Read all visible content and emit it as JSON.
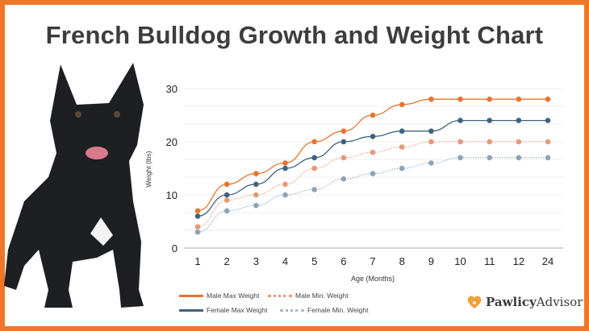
{
  "title": "French Bulldog Growth and Weight Chart",
  "brand": {
    "part1": "Pawlicy",
    "part2": "Advisor"
  },
  "colors": {
    "border": "#ee7628",
    "male_max": "#e8732f",
    "male_min": "#e39a77",
    "female_max": "#3f6280",
    "female_min": "#8da3b7"
  },
  "chart_data": {
    "type": "line",
    "title": "French Bulldog Growth and Weight Chart",
    "xlabel": "Age (Months)",
    "ylabel": "Weight (lbs)",
    "categories": [
      "1",
      "2",
      "3",
      "4",
      "5",
      "6",
      "7",
      "8",
      "9",
      "10",
      "11",
      "12",
      "24"
    ],
    "ylim": [
      0,
      30
    ],
    "yticks": [
      0,
      10,
      20,
      30
    ],
    "grid": true,
    "legend": "bottom-left",
    "series": [
      {
        "name": "Male Max Weight",
        "style": "solid",
        "color": "#e8732f",
        "values": [
          7,
          12,
          14,
          16,
          20,
          22,
          25,
          27,
          28,
          28,
          28,
          28,
          28
        ]
      },
      {
        "name": "Male Min. Weight",
        "style": "dotted",
        "color": "#e39a77",
        "values": [
          4,
          9,
          10,
          12,
          15,
          17,
          18,
          19,
          20,
          20,
          20,
          20,
          20
        ]
      },
      {
        "name": "Female Max Weight",
        "style": "solid",
        "color": "#3f6280",
        "values": [
          6,
          10,
          12,
          15,
          17,
          20,
          21,
          22,
          22,
          24,
          24,
          24,
          24
        ]
      },
      {
        "name": "Female Min. Weight",
        "style": "dotted",
        "color": "#8da3b7",
        "values": [
          3,
          7,
          8,
          10,
          11,
          13,
          14,
          15,
          16,
          17,
          17,
          17,
          17
        ]
      }
    ]
  }
}
